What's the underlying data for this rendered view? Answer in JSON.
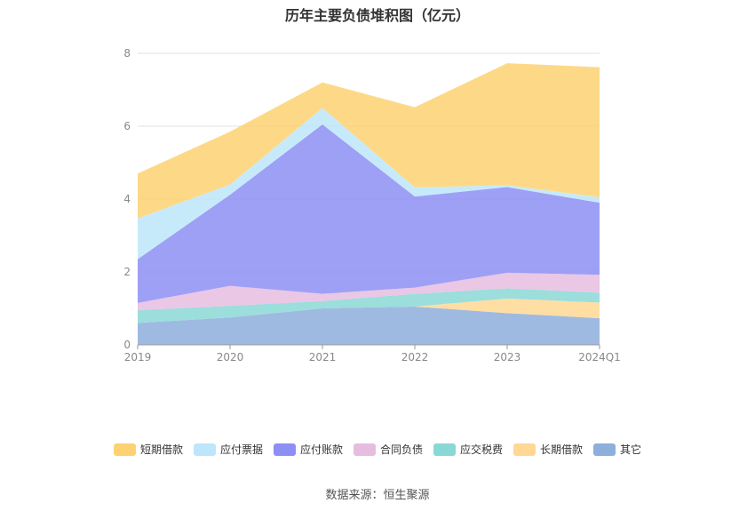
{
  "title": "历年主要负债堆积图（亿元）",
  "source": "数据来源：恒生聚源",
  "chart_data": {
    "type": "area",
    "stacked": true,
    "categories": [
      "2019",
      "2020",
      "2021",
      "2022",
      "2023",
      "2024Q1"
    ],
    "ylim": [
      0,
      8
    ],
    "yticks": [
      0,
      2,
      4,
      6,
      8
    ],
    "grid": true,
    "legend_position": "bottom",
    "series": [
      {
        "name": "其它",
        "color": "#8eaedb",
        "values": [
          0.6,
          0.75,
          1.0,
          1.05,
          0.87,
          0.73
        ]
      },
      {
        "name": "长期借款",
        "color": "#ffd894",
        "values": [
          0.0,
          0.0,
          0.0,
          0.0,
          0.4,
          0.43
        ]
      },
      {
        "name": "应交税费",
        "color": "#8ad8d6",
        "values": [
          0.35,
          0.32,
          0.2,
          0.35,
          0.28,
          0.27
        ]
      },
      {
        "name": "合同负债",
        "color": "#e6bde0",
        "values": [
          0.2,
          0.55,
          0.2,
          0.17,
          0.43,
          0.49
        ]
      },
      {
        "name": "应付账款",
        "color": "#8d8ff5",
        "values": [
          1.2,
          2.5,
          4.65,
          2.5,
          2.35,
          1.98
        ]
      },
      {
        "name": "应付票据",
        "color": "#bde6fa",
        "values": [
          1.12,
          0.28,
          0.45,
          0.25,
          0.05,
          0.15
        ]
      },
      {
        "name": "短期借款",
        "color": "#fdd272",
        "values": [
          1.23,
          1.45,
          0.7,
          2.2,
          3.35,
          3.57
        ]
      }
    ],
    "legend_order": [
      "短期借款",
      "应付票据",
      "应付账款",
      "合同负债",
      "应交税费",
      "长期借款",
      "其它"
    ]
  }
}
